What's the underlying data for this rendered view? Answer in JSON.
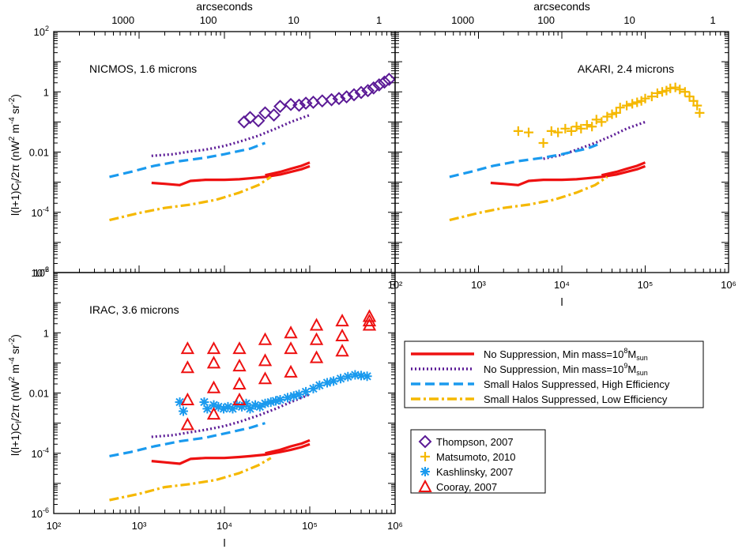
{
  "figure": {
    "top_axis_label": "arcseconds",
    "x_axis_label": "l",
    "y_axis_label_main": "l(l+1)C",
    "y_axis_label_sub": "l",
    "y_axis_label_rest": "/2π  (nW",
    "y_axis_label_units": "m",
    "y_axis_label_end": "sr",
    "y_axis_label_close": ")"
  },
  "legend_lines": [
    {
      "label": "No Suppression, Min mass=10",
      "exp": "8",
      "tail": "M",
      "sub": "sun",
      "color": "#ee1111",
      "dash": "solid"
    },
    {
      "label": "No Suppression, Min mass=10",
      "exp": "9",
      "tail": "M",
      "sub": "sun",
      "color": "#5b1a96",
      "dash": "dotted"
    },
    {
      "label": "Small Halos Suppressed, High Efficiency",
      "exp": "",
      "tail": "",
      "sub": "",
      "color": "#1a9aee",
      "dash": "dashed"
    },
    {
      "label": "Small Halos Suppressed, Low Efficiency",
      "exp": "",
      "tail": "",
      "sub": "",
      "color": "#f5b800",
      "dash": "dashdot"
    }
  ],
  "legend_markers": [
    {
      "label": "Thompson, 2007",
      "marker": "diamond",
      "color": "#5b1a96"
    },
    {
      "label": "Matsumoto, 2010",
      "marker": "plus",
      "color": "#f5b800"
    },
    {
      "label": "Kashlinsky, 2007",
      "marker": "asterisk",
      "color": "#1a9aee"
    },
    {
      "label": "Cooray, 2007",
      "marker": "triangle",
      "color": "#ee1111"
    }
  ],
  "chart_data": [
    {
      "type": "line",
      "title": "NICMOS, 1.6 microns",
      "x_scale": "log",
      "y_scale": "log",
      "xlim": [
        100,
        1000000
      ],
      "ylim": [
        1e-06,
        100
      ],
      "top_axis": {
        "label": "arcseconds",
        "ticks": [
          "1000",
          "100",
          "10",
          "1"
        ]
      },
      "series": [
        {
          "name": "No Suppression, Min mass=10^8 Msun",
          "color": "#ee1111",
          "dash": "solid",
          "x": [
            1400,
            2000,
            3000,
            4000,
            6000,
            8000,
            10000,
            15000,
            20000,
            30000,
            45000,
            60000,
            80000,
            100000
          ],
          "y": [
            0.00095,
            0.00088,
            0.0008,
            0.0011,
            0.0012,
            0.0012,
            0.0012,
            0.00125,
            0.00135,
            0.0015,
            0.0018,
            0.0022,
            0.0027,
            0.0034
          ]
        },
        {
          "name": "No Suppression, Min mass=10^8 Msun (upper)",
          "color": "#ee1111",
          "dash": "solid",
          "x": [
            30000,
            45000,
            60000,
            80000,
            100000
          ],
          "y": [
            0.0017,
            0.0022,
            0.0028,
            0.0035,
            0.0045
          ]
        },
        {
          "name": "No Suppression, Min mass=10^9 Msun",
          "color": "#5b1a96",
          "dash": "dotted",
          "x": [
            1400,
            2500,
            4000,
            6000,
            10000,
            15000,
            25000,
            40000,
            60000,
            100000
          ],
          "y": [
            0.0075,
            0.0085,
            0.0105,
            0.012,
            0.016,
            0.022,
            0.035,
            0.06,
            0.1,
            0.17
          ]
        },
        {
          "name": "Small Halos Suppressed, High Efficiency",
          "color": "#1a9aee",
          "dash": "dashed",
          "x": [
            450,
            800,
            1500,
            3000,
            6000,
            10000,
            20000,
            30000
          ],
          "y": [
            0.0015,
            0.0022,
            0.0035,
            0.005,
            0.0065,
            0.0085,
            0.013,
            0.02
          ]
        },
        {
          "name": "Small Halos Suppressed, Low Efficiency",
          "color": "#f5b800",
          "dash": "dashdot",
          "x": [
            450,
            1000,
            2000,
            4000,
            8000,
            15000,
            25000,
            35000
          ],
          "y": [
            5.5e-05,
            9.5e-05,
            0.00014,
            0.00018,
            0.00026,
            0.00045,
            0.0008,
            0.0015
          ]
        },
        {
          "name": "Thompson, 2007",
          "marker": "diamond",
          "color": "#5b1a96",
          "x": [
            17000,
            20000,
            25000,
            30000,
            38000,
            45000,
            60000,
            75000,
            90000,
            110000,
            140000,
            180000,
            220000,
            270000,
            330000,
            400000,
            480000,
            560000,
            650000,
            750000,
            850000
          ],
          "y": [
            0.1,
            0.14,
            0.11,
            0.2,
            0.17,
            0.33,
            0.38,
            0.36,
            0.42,
            0.45,
            0.5,
            0.55,
            0.6,
            0.68,
            0.8,
            0.95,
            1.1,
            1.35,
            1.7,
            2.1,
            2.6
          ]
        }
      ]
    },
    {
      "type": "line",
      "title": "AKARI, 2.4 microns",
      "x_scale": "log",
      "y_scale": "log",
      "xlim": [
        100,
        1000000
      ],
      "ylim": [
        1e-06,
        100
      ],
      "top_axis": {
        "label": "arcseconds",
        "ticks": [
          "1000",
          "100",
          "10",
          "1"
        ]
      },
      "x_ticks": [
        "10²",
        "10³",
        "10⁴",
        "10⁵",
        "10⁶"
      ],
      "series": [
        {
          "name": "No Suppression, Min mass=10^8 Msun",
          "color": "#ee1111",
          "dash": "solid",
          "x": [
            1400,
            2000,
            3000,
            4000,
            6000,
            8000,
            10000,
            15000,
            20000,
            30000,
            45000,
            60000,
            80000,
            100000
          ],
          "y": [
            0.00095,
            0.00088,
            0.0008,
            0.0011,
            0.0012,
            0.0012,
            0.0012,
            0.00125,
            0.00135,
            0.0015,
            0.0018,
            0.0022,
            0.0027,
            0.0034
          ]
        },
        {
          "name": "No Suppression, Min mass=10^8 Msun (upper)",
          "color": "#ee1111",
          "dash": "solid",
          "x": [
            30000,
            45000,
            60000,
            80000,
            100000
          ],
          "y": [
            0.0017,
            0.0022,
            0.0028,
            0.0035,
            0.0045
          ]
        },
        {
          "name": "No Suppression, Min mass=10^9 Msun",
          "color": "#5b1a96",
          "dash": "dotted",
          "x": [
            6000,
            10000,
            15000,
            25000,
            40000,
            60000,
            100000
          ],
          "y": [
            0.006,
            0.008,
            0.012,
            0.02,
            0.035,
            0.06,
            0.1
          ]
        },
        {
          "name": "Small Halos Suppressed, High Efficiency",
          "color": "#1a9aee",
          "dash": "dashed",
          "x": [
            450,
            800,
            1500,
            3000,
            6000,
            10000,
            20000,
            30000
          ],
          "y": [
            0.0015,
            0.0022,
            0.0035,
            0.005,
            0.0065,
            0.0085,
            0.013,
            0.02
          ]
        },
        {
          "name": "Small Halos Suppressed, Low Efficiency",
          "color": "#f5b800",
          "dash": "dashdot",
          "x": [
            450,
            1000,
            2000,
            4000,
            8000,
            15000,
            25000,
            35000
          ],
          "y": [
            5.5e-05,
            9.5e-05,
            0.00014,
            0.00018,
            0.00026,
            0.00045,
            0.0008,
            0.0015
          ]
        },
        {
          "name": "Matsumoto, 2010",
          "marker": "plus",
          "color": "#f5b800",
          "x": [
            3000,
            4000,
            6000,
            7500,
            9000,
            11000,
            13000,
            15000,
            17000,
            20000,
            23000,
            26000,
            30000,
            35000,
            40000,
            45000,
            50000,
            60000,
            70000,
            80000,
            90000,
            100000,
            120000,
            140000,
            160000,
            180000,
            200000,
            230000,
            260000,
            300000,
            340000,
            380000,
            420000,
            450000
          ],
          "y": [
            0.05,
            0.045,
            0.02,
            0.05,
            0.045,
            0.06,
            0.05,
            0.07,
            0.06,
            0.08,
            0.07,
            0.12,
            0.1,
            0.15,
            0.18,
            0.2,
            0.3,
            0.35,
            0.4,
            0.45,
            0.5,
            0.6,
            0.7,
            0.9,
            1.0,
            1.1,
            1.3,
            1.4,
            1.2,
            1.0,
            0.7,
            0.5,
            0.35,
            0.2
          ]
        }
      ]
    },
    {
      "type": "line",
      "title": "IRAC, 3.6 microns",
      "x_scale": "log",
      "y_scale": "log",
      "xlim": [
        100,
        1000000
      ],
      "ylim": [
        1e-06,
        100
      ],
      "x_ticks": [
        "10²",
        "10³",
        "10⁴",
        "10⁵",
        "10⁶"
      ],
      "series": [
        {
          "name": "No Suppression, Min mass=10^8 Msun",
          "color": "#ee1111",
          "dash": "solid",
          "x": [
            1400,
            2000,
            3000,
            4000,
            6000,
            8000,
            10000,
            15000,
            20000,
            30000,
            45000,
            60000,
            80000,
            100000
          ],
          "y": [
            5.5e-05,
            5e-05,
            4.5e-05,
            6.5e-05,
            7e-05,
            7e-05,
            7e-05,
            7.5e-05,
            8e-05,
            9e-05,
            0.00011,
            0.00013,
            0.00016,
            0.0002
          ]
        },
        {
          "name": "No Suppression, Min mass=10^8 Msun (upper)",
          "color": "#ee1111",
          "dash": "solid",
          "x": [
            30000,
            45000,
            60000,
            80000,
            100000
          ],
          "y": [
            0.0001,
            0.00013,
            0.00017,
            0.00021,
            0.00027
          ]
        },
        {
          "name": "No Suppression, Min mass=10^9 Msun",
          "color": "#5b1a96",
          "dash": "dotted",
          "x": [
            1400,
            2500,
            4000,
            6000,
            10000,
            15000,
            25000,
            40000,
            60000,
            100000
          ],
          "y": [
            0.00035,
            0.0004,
            0.0005,
            0.0006,
            0.0008,
            0.0011,
            0.0018,
            0.003,
            0.005,
            0.009
          ]
        },
        {
          "name": "Small Halos Suppressed, High Efficiency",
          "color": "#1a9aee",
          "dash": "dashed",
          "x": [
            450,
            800,
            1500,
            3000,
            6000,
            10000,
            20000,
            30000
          ],
          "y": [
            8e-05,
            0.00011,
            0.00017,
            0.00025,
            0.00033,
            0.00045,
            0.0007,
            0.001
          ]
        },
        {
          "name": "Small Halos Suppressed, Low Efficiency",
          "color": "#f5b800",
          "dash": "dashdot",
          "x": [
            450,
            1000,
            2000,
            4000,
            8000,
            15000,
            25000,
            35000
          ],
          "y": [
            2.8e-06,
            4.5e-06,
            7.5e-06,
            9.5e-06,
            1.3e-05,
            2.2e-05,
            4e-05,
            7e-05
          ]
        },
        {
          "name": "Kashlinsky, 2007",
          "marker": "asterisk",
          "color": "#1a9aee",
          "x": [
            3000,
            3300,
            5800,
            6300,
            7500,
            8500,
            9800,
            11000,
            12500,
            14000,
            16000,
            18000,
            20000,
            23000,
            26000,
            30000,
            35000,
            40000,
            45000,
            55000,
            65000,
            75000,
            90000,
            110000,
            130000,
            160000,
            190000,
            230000,
            280000,
            340000,
            400000,
            470000
          ],
          "y": [
            0.005,
            0.0025,
            0.005,
            0.003,
            0.004,
            0.0035,
            0.003,
            0.0035,
            0.003,
            0.004,
            0.0035,
            0.0045,
            0.003,
            0.004,
            0.0035,
            0.0045,
            0.005,
            0.0055,
            0.006,
            0.007,
            0.008,
            0.009,
            0.011,
            0.014,
            0.018,
            0.022,
            0.025,
            0.03,
            0.035,
            0.04,
            0.038,
            0.036
          ]
        },
        {
          "name": "Cooray, 2007",
          "marker": "triangle",
          "color": "#ee1111",
          "x": [
            3700,
            3700,
            3700,
            3700,
            7500,
            7500,
            7500,
            7500,
            15000,
            15000,
            15000,
            15000,
            30000,
            30000,
            30000,
            60000,
            60000,
            60000,
            120000,
            120000,
            120000,
            240000,
            240000,
            240000,
            500000,
            500000,
            500000
          ],
          "y": [
            0.3,
            0.07,
            0.006,
            0.0009,
            0.3,
            0.1,
            0.015,
            0.002,
            0.3,
            0.08,
            0.02,
            0.006,
            0.6,
            0.12,
            0.03,
            1.0,
            0.3,
            0.05,
            1.8,
            0.6,
            0.15,
            2.5,
            0.8,
            0.25,
            3.5,
            2.5,
            1.8
          ]
        }
      ]
    }
  ]
}
